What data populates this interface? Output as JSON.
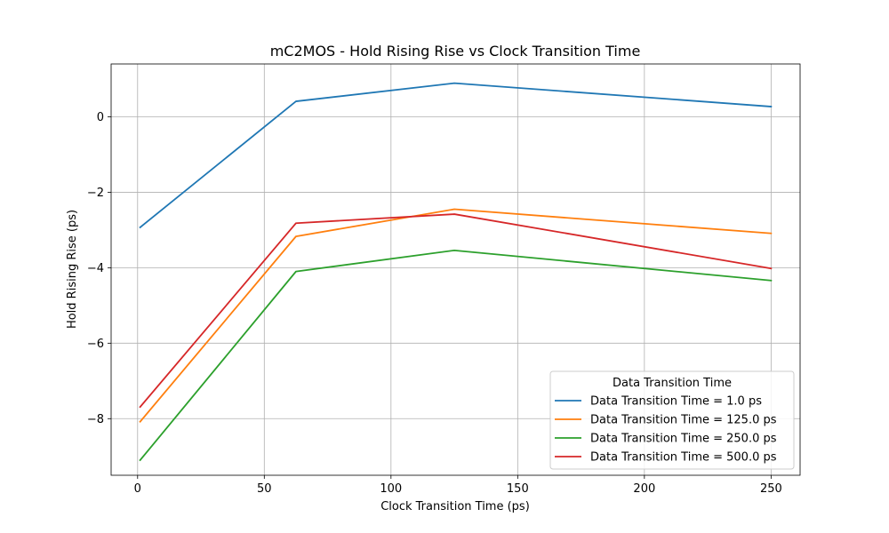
{
  "chart_data": {
    "type": "line",
    "title": "mC2MOS - Hold Rising Rise vs Clock Transition Time",
    "xlabel": "Clock Transition Time (ps)",
    "ylabel": "Hold Rising Rise (ps)",
    "x": [
      1,
      62.5,
      125,
      250
    ],
    "xlim": [
      -10.45,
      261.45
    ],
    "ylim": [
      -9.5,
      1.4
    ],
    "xticks": [
      0,
      50,
      100,
      150,
      200,
      250
    ],
    "xtick_labels": [
      "0",
      "50",
      "100",
      "150",
      "200",
      "250"
    ],
    "yticks": [
      -8,
      -6,
      -4,
      -2,
      0
    ],
    "ytick_labels": [
      "−8",
      "−6",
      "−4",
      "−2",
      "0"
    ],
    "grid": true,
    "legend": {
      "title": "Data Transition Time",
      "placement": "lower-right"
    },
    "series": [
      {
        "name": "Data Transition Time = 1.0 ps",
        "color": "#1f77b4",
        "values": [
          -2.93,
          0.41,
          0.89,
          0.27
        ]
      },
      {
        "name": "Data Transition Time = 125.0 ps",
        "color": "#ff7f0e",
        "values": [
          -8.08,
          -3.17,
          -2.45,
          -3.09
        ]
      },
      {
        "name": "Data Transition Time = 250.0 ps",
        "color": "#2ca02c",
        "values": [
          -9.1,
          -4.1,
          -3.54,
          -4.34
        ]
      },
      {
        "name": "Data Transition Time = 500.0 ps",
        "color": "#d62728",
        "values": [
          -7.69,
          -2.82,
          -2.58,
          -4.02
        ]
      }
    ]
  }
}
